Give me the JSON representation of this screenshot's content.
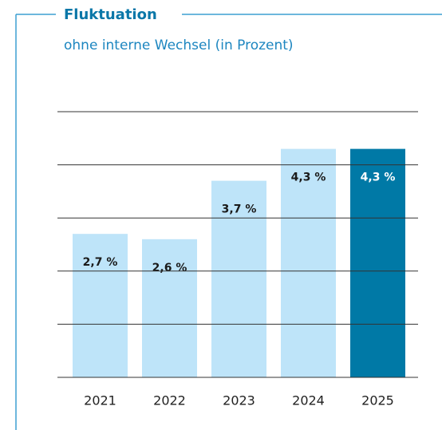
{
  "chart_data": {
    "type": "bar",
    "title": "Fluktuation",
    "subtitle": "ohne interne Wechsel (in Prozent)",
    "categories": [
      "2021",
      "2022",
      "2023",
      "2024",
      "2025"
    ],
    "values": [
      2.7,
      2.6,
      3.7,
      4.3,
      4.3
    ],
    "value_labels": [
      "2,7 %",
      "2,6 %",
      "3,7 %",
      "4,3 %",
      "4,3 %"
    ],
    "colors": [
      "#bee4f9",
      "#bee4f9",
      "#bee4f9",
      "#bee4f9",
      "#0079a6"
    ],
    "ylim": [
      0,
      5
    ],
    "yticks": [
      0,
      1,
      2,
      3,
      4,
      5
    ],
    "grid": true
  }
}
